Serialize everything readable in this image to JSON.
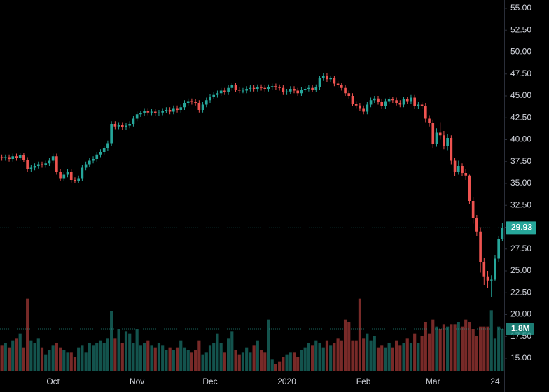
{
  "chart_data": {
    "type": "candlestick",
    "categories": [
      null,
      null,
      null,
      null,
      null,
      null,
      null,
      null,
      null,
      null,
      null,
      null,
      null,
      null,
      "Oct",
      null,
      null,
      null,
      null,
      null,
      null,
      null,
      null,
      null,
      null,
      null,
      null,
      null,
      null,
      null,
      null,
      null,
      null,
      null,
      null,
      null,
      null,
      "Nov",
      null,
      null,
      null,
      null,
      null,
      null,
      null,
      null,
      null,
      null,
      null,
      null,
      null,
      null,
      null,
      null,
      null,
      null,
      null,
      "Dec",
      null,
      null,
      null,
      null,
      null,
      null,
      null,
      null,
      null,
      null,
      null,
      null,
      null,
      null,
      null,
      null,
      null,
      null,
      null,
      null,
      "2020",
      null,
      null,
      null,
      null,
      null,
      null,
      null,
      null,
      null,
      null,
      null,
      null,
      null,
      null,
      null,
      null,
      null,
      null,
      null,
      null,
      "Feb",
      null,
      null,
      null,
      null,
      null,
      null,
      null,
      null,
      null,
      null,
      null,
      null,
      null,
      null,
      null,
      null,
      null,
      null,
      "Mar",
      null,
      null,
      null,
      null,
      null,
      null,
      null,
      null,
      null,
      null,
      null,
      null,
      null,
      null,
      null,
      null,
      "24",
      null,
      null
    ],
    "open": [
      38.0,
      37.9,
      38.0,
      37.8,
      38.1,
      37.9,
      38.2,
      37.7,
      36.6,
      36.8,
      37.0,
      37.2,
      37.1,
      37.3,
      37.6,
      38.1,
      36.3,
      35.6,
      36.0,
      36.3,
      35.4,
      35.3,
      35.6,
      36.8,
      37.2,
      37.6,
      37.8,
      38.3,
      38.6,
      39.0,
      39.6,
      41.8,
      41.5,
      41.7,
      41.4,
      41.6,
      41.8,
      42.4,
      42.9,
      43.0,
      43.3,
      43.1,
      43.2,
      43.0,
      43.1,
      43.3,
      43.4,
      43.2,
      43.6,
      43.4,
      43.7,
      44.2,
      44.4,
      44.3,
      44.2,
      43.4,
      44.0,
      44.5,
      44.9,
      45.1,
      45.3,
      45.6,
      45.4,
      45.9,
      46.2,
      45.7,
      45.6,
      45.6,
      45.8,
      45.9,
      45.8,
      46.0,
      45.9,
      45.8,
      46.0,
      46.1,
      46.0,
      45.9,
      45.4,
      45.5,
      45.8,
      45.6,
      45.3,
      45.7,
      45.8,
      45.9,
      45.7,
      46.0,
      47.0,
      47.3,
      46.9,
      47.0,
      46.4,
      46.2,
      45.9,
      45.3,
      45.0,
      44.1,
      43.9,
      43.6,
      43.2,
      44.0,
      44.5,
      44.7,
      44.3,
      43.8,
      44.4,
      44.6,
      44.5,
      44.2,
      44.0,
      44.6,
      44.4,
      44.8,
      43.8,
      44.0,
      43.8,
      42.4,
      41.9,
      39.5,
      40.8,
      40.5,
      39.3,
      40.2,
      37.6,
      36.3,
      37.0,
      36.2,
      35.9,
      33.0,
      31.0,
      29.5,
      26.0,
      24.3,
      23.9,
      24.0,
      26.4,
      28.6
    ],
    "high": [
      38.3,
      38.3,
      38.3,
      38.4,
      38.4,
      38.5,
      38.5,
      38.0,
      37.1,
      37.3,
      37.5,
      37.5,
      37.6,
      37.9,
      38.4,
      38.4,
      36.6,
      36.3,
      36.6,
      36.6,
      35.7,
      35.9,
      37.1,
      37.5,
      37.9,
      38.1,
      38.6,
      38.9,
      39.3,
      39.9,
      42.1,
      42.1,
      42.0,
      42.0,
      41.9,
      42.1,
      42.7,
      43.2,
      43.3,
      43.6,
      43.6,
      43.5,
      43.5,
      43.4,
      43.6,
      43.7,
      43.7,
      43.9,
      43.9,
      44.0,
      44.5,
      44.7,
      44.7,
      44.6,
      44.5,
      44.3,
      44.8,
      45.2,
      45.4,
      45.6,
      45.9,
      45.9,
      46.2,
      46.5,
      46.5,
      46.0,
      45.9,
      46.1,
      46.2,
      46.2,
      46.3,
      46.3,
      46.2,
      46.3,
      46.4,
      46.4,
      46.3,
      46.2,
      45.8,
      46.1,
      46.1,
      45.9,
      46.0,
      46.1,
      46.2,
      46.2,
      46.3,
      47.3,
      47.6,
      47.6,
      47.3,
      47.3,
      46.7,
      46.5,
      46.2,
      45.6,
      45.3,
      44.4,
      44.2,
      43.9,
      44.3,
      44.8,
      45.0,
      45.0,
      44.6,
      44.7,
      44.9,
      44.9,
      44.8,
      44.5,
      44.9,
      44.9,
      45.1,
      45.1,
      44.3,
      44.3,
      44.2,
      42.8,
      42.3,
      41.3,
      42.0,
      41.0,
      40.6,
      40.5,
      37.9,
      37.6,
      37.3,
      36.6,
      36.0,
      33.4,
      31.4,
      30.0,
      26.5,
      25.0,
      24.5,
      26.8,
      29.0,
      30.5
    ],
    "low": [
      37.6,
      37.6,
      37.5,
      37.5,
      37.6,
      37.6,
      37.4,
      36.3,
      36.3,
      36.5,
      36.7,
      36.8,
      36.8,
      37.0,
      37.3,
      36.0,
      35.3,
      35.3,
      35.7,
      35.1,
      35.0,
      35.0,
      35.3,
      36.5,
      36.9,
      37.3,
      37.5,
      38.0,
      38.3,
      38.7,
      39.3,
      41.2,
      41.2,
      41.1,
      41.1,
      41.3,
      41.5,
      42.1,
      42.6,
      42.7,
      42.8,
      42.8,
      42.7,
      42.7,
      42.8,
      43.0,
      42.9,
      42.9,
      43.1,
      43.1,
      43.4,
      43.9,
      44.0,
      43.9,
      43.1,
      43.1,
      43.7,
      44.2,
      44.6,
      44.8,
      45.0,
      45.1,
      45.1,
      45.6,
      45.4,
      45.3,
      45.3,
      45.3,
      45.5,
      45.5,
      45.5,
      45.6,
      45.5,
      45.5,
      45.7,
      45.7,
      45.6,
      45.1,
      45.1,
      45.2,
      45.3,
      45.0,
      45.0,
      45.4,
      45.5,
      45.4,
      45.4,
      45.7,
      46.7,
      46.6,
      46.6,
      46.1,
      45.9,
      45.6,
      45.0,
      44.7,
      43.8,
      43.6,
      43.3,
      42.9,
      42.9,
      43.7,
      44.2,
      44.0,
      43.5,
      43.5,
      44.1,
      44.2,
      43.9,
      43.7,
      43.7,
      44.1,
      44.1,
      43.5,
      43.5,
      43.5,
      42.0,
      41.5,
      39.0,
      39.2,
      40.0,
      38.9,
      38.8,
      37.2,
      35.8,
      36.0,
      35.8,
      35.4,
      32.6,
      30.4,
      29.0,
      24.8,
      23.4,
      23.0,
      22.0,
      23.8,
      26.0,
      28.4
    ],
    "close": [
      37.9,
      38.0,
      37.8,
      38.1,
      37.9,
      38.2,
      37.7,
      36.6,
      36.8,
      37.0,
      37.2,
      37.1,
      37.3,
      37.6,
      38.1,
      36.3,
      35.6,
      36.0,
      36.3,
      35.4,
      35.3,
      35.6,
      36.8,
      37.2,
      37.6,
      37.8,
      38.3,
      38.6,
      39.0,
      39.6,
      41.8,
      41.5,
      41.7,
      41.4,
      41.6,
      41.8,
      42.4,
      42.9,
      43.0,
      43.3,
      43.1,
      43.2,
      43.0,
      43.1,
      43.3,
      43.4,
      43.2,
      43.6,
      43.4,
      43.7,
      44.2,
      44.4,
      44.3,
      44.2,
      43.4,
      44.0,
      44.5,
      44.9,
      45.1,
      45.3,
      45.6,
      45.4,
      45.9,
      46.2,
      45.7,
      45.6,
      45.6,
      45.8,
      45.9,
      45.8,
      46.0,
      45.9,
      45.8,
      46.0,
      46.1,
      46.0,
      45.9,
      45.4,
      45.5,
      45.8,
      45.6,
      45.3,
      45.7,
      45.8,
      45.9,
      45.7,
      46.0,
      47.0,
      47.3,
      46.9,
      47.0,
      46.4,
      46.2,
      45.9,
      45.3,
      45.0,
      44.1,
      43.9,
      43.6,
      43.2,
      44.0,
      44.5,
      44.7,
      44.3,
      43.8,
      44.4,
      44.6,
      44.5,
      44.2,
      44.0,
      44.6,
      44.4,
      44.8,
      43.8,
      44.0,
      43.8,
      42.4,
      41.9,
      39.5,
      40.8,
      40.5,
      39.3,
      40.2,
      37.6,
      36.3,
      37.0,
      36.2,
      35.9,
      33.0,
      31.0,
      29.5,
      26.0,
      24.3,
      23.9,
      24.0,
      26.4,
      28.6,
      29.93
    ],
    "volume": {
      "axis": "y2",
      "values": [
        1.1,
        1.2,
        1.0,
        1.3,
        1.4,
        1.6,
        1.0,
        3.1,
        1.3,
        1.2,
        1.4,
        1.0,
        0.7,
        0.9,
        1.1,
        1.2,
        1.0,
        0.9,
        0.8,
        0.8,
        0.6,
        1.0,
        1.1,
        0.8,
        1.2,
        1.1,
        1.2,
        1.3,
        1.2,
        1.4,
        2.55,
        1.4,
        1.8,
        1.2,
        1.7,
        1.6,
        1.2,
        1.8,
        1.1,
        1.2,
        1.3,
        1.1,
        1.0,
        1.2,
        1.1,
        0.9,
        1.0,
        0.9,
        1.0,
        1.3,
        1.0,
        0.9,
        0.8,
        0.9,
        1.3,
        0.7,
        0.8,
        1.1,
        1.2,
        1.6,
        1.2,
        0.8,
        1.4,
        1.7,
        0.9,
        0.7,
        0.8,
        1.0,
        0.8,
        1.1,
        1.3,
        0.9,
        0.8,
        2.2,
        0.5,
        0.3,
        0.4,
        0.6,
        0.7,
        0.8,
        0.8,
        0.6,
        0.9,
        1.0,
        1.2,
        1.1,
        1.3,
        1.2,
        1.0,
        1.3,
        1.1,
        1.2,
        1.4,
        1.3,
        2.2,
        2.1,
        1.3,
        1.3,
        3.1,
        1.4,
        1.6,
        1.3,
        1.5,
        1.0,
        1.1,
        1.0,
        1.2,
        1.0,
        1.3,
        1.1,
        1.2,
        1.4,
        1.2,
        1.6,
        1.2,
        1.5,
        2.1,
        1.6,
        2.2,
        1.9,
        1.8,
        2.0,
        1.9,
        2.0,
        2.0,
        2.1,
        1.9,
        2.2,
        2.1,
        1.8,
        1.5,
        1.9,
        1.9,
        1.9,
        2.6,
        1.4,
        1.9,
        1.8
      ],
      "value_labels": [
        null,
        null,
        null,
        null,
        null,
        null,
        null,
        null,
        null,
        null,
        null,
        null,
        null,
        null,
        null,
        null,
        null,
        null,
        null,
        null,
        null,
        null,
        null,
        null,
        null,
        null,
        null,
        null,
        null,
        null,
        null,
        null,
        null,
        null,
        null,
        null,
        null,
        null,
        null,
        null,
        null,
        null,
        null,
        null,
        null,
        null,
        null,
        null,
        null,
        null,
        null,
        null,
        null,
        null,
        null,
        null,
        null,
        null,
        null,
        null,
        null,
        null,
        null,
        null,
        null,
        null,
        null,
        null,
        null,
        null,
        null,
        null,
        null,
        null,
        null,
        null,
        null,
        null,
        null,
        null,
        null,
        null,
        null,
        null,
        null,
        null,
        null,
        null,
        null,
        null,
        null,
        null,
        null,
        null,
        null,
        null,
        null,
        null,
        null,
        null,
        null,
        null,
        null,
        null,
        null,
        null,
        null,
        null,
        null,
        null,
        null,
        null,
        null,
        null,
        null,
        null,
        null,
        null,
        null,
        null,
        null,
        null,
        null,
        null,
        null,
        null,
        null,
        null,
        null,
        null,
        null,
        null,
        null,
        null,
        null,
        null,
        null,
        "1.8M"
      ]
    },
    "ylim": [
      13.56,
      55.96
    ],
    "y2lim": [
      0,
      15.9
    ],
    "yticks": [
      {
        "value": 55,
        "label": "55.00"
      },
      {
        "value": 52.5,
        "label": "52.50"
      },
      {
        "value": 50,
        "label": "50.00"
      },
      {
        "value": 47.5,
        "label": "47.50"
      },
      {
        "value": 45,
        "label": "45.00"
      },
      {
        "value": 42.5,
        "label": "42.50"
      },
      {
        "value": 40,
        "label": "40.00"
      },
      {
        "value": 37.5,
        "label": "37.50"
      },
      {
        "value": 35,
        "label": "35.00"
      },
      {
        "value": 32.5,
        "label": "32.50"
      },
      {
        "value": 30,
        "label": "30.00"
      },
      {
        "value": 27.5,
        "label": "27.50"
      },
      {
        "value": 25,
        "label": "25.00"
      },
      {
        "value": 22.5,
        "label": "22.50"
      },
      {
        "value": 20,
        "label": "20.00"
      },
      {
        "value": 17.5,
        "label": "17.50"
      },
      {
        "value": 15,
        "label": "15.00"
      }
    ],
    "up_color": "#26a69a",
    "down_color": "#ef5350",
    "background": "#000000",
    "grid": false
  }
}
